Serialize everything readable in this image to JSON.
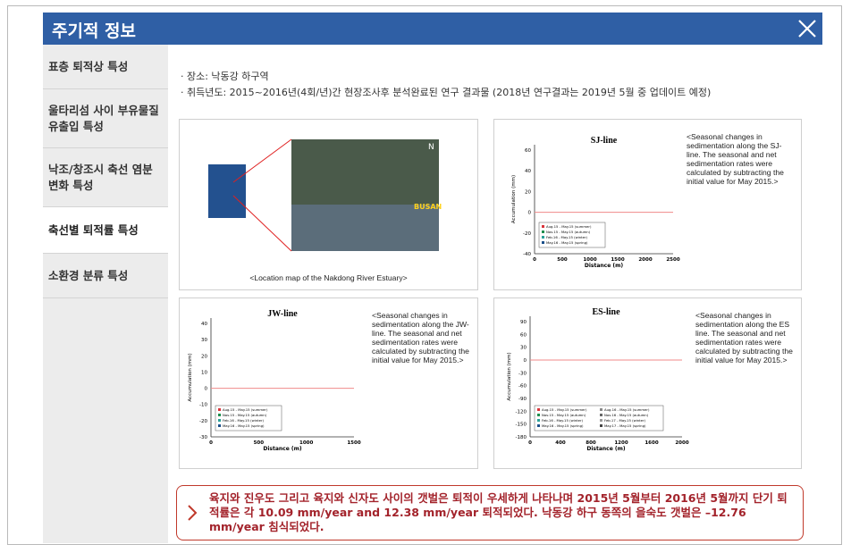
{
  "header": {
    "title": "주기적 정보"
  },
  "sidebar": {
    "items": [
      "표층 퇴적상 특성",
      "울타리섬 사이 부유물질 유출입 특성",
      "낙조/창조시 축선 염분 변화 특성",
      "축선별 퇴적률 특성",
      "소환경 분류 특성"
    ]
  },
  "content": {
    "bullets": [
      "· 장소: 낙동강 하구역",
      "· 취득년도: 2015~2016년(4회/년)간 현장조사후 분석완료된 연구 결과물 (2018년 연구결과는 2019년 5월 중 업데이트 예정)"
    ]
  },
  "panels": [
    {
      "caption": "<Location map of the Nakdong River Estuary>",
      "map_label": "BUSAN",
      "north": "N"
    },
    {
      "title": "SJ-line",
      "caption": "<Seasonal changes in sedimentation along the SJ-line. The seasonal and net sedimentation rates were calculated by subtracting the initial value for May 2015.>",
      "ylabel": "Accumulation (mm)",
      "xlabel": "Distance (m)",
      "yticks": [
        "60",
        "40",
        "20",
        "0",
        "-20",
        "-40"
      ],
      "xticks": [
        "0",
        "500",
        "1000",
        "1500",
        "2000",
        "2500"
      ],
      "legend": [
        "Aug.15 - May.15 (summer)",
        "Nov.15 - May.15 (autumn)",
        "Feb.16 - May.15 (winter)",
        "May.16 - May.15 (spring)"
      ]
    },
    {
      "title": "JW-line",
      "caption": "<Seasonal changes in sedimentation along the JW-line. The seasonal and net sedimentation rates were calculated by subtracting the initial value for May 2015.>",
      "ylabel": "Accumulation (mm)",
      "xlabel": "Distance (m)",
      "yticks": [
        "40",
        "30",
        "20",
        "10",
        "0",
        "-10",
        "-20",
        "-30"
      ],
      "xticks": [
        "0",
        "500",
        "1000",
        "1500"
      ],
      "legend": [
        "Aug.15 - May.15 (summer)",
        "Nov.15 - May.15 (autumn)",
        "Feb.16 - May.15 (winter)",
        "May.16 - May.15 (spring)"
      ]
    },
    {
      "title": "ES-line",
      "caption": "<Seasonal changes in sedimentation along the ES line. The seasonal and net sedimentation rates were calculated by subtracting the initial value for May 2015.>",
      "ylabel": "Accumulation (mm)",
      "xlabel": "Distance (m)",
      "yticks": [
        "90",
        "60",
        "30",
        "0",
        "-30",
        "-60",
        "-90",
        "-120",
        "-150",
        "-180"
      ],
      "xticks": [
        "0",
        "400",
        "800",
        "1200",
        "1600",
        "2000"
      ],
      "legend": [
        "Aug.15 - May.15 (summer)",
        "Nov.15 - May.15 (autumn)",
        "Feb.16 - May.15 (winter)",
        "May.16 - May.15 (spring)",
        "Aug.16 - May.15 (summer)",
        "Nov.16 - May.15 (autumn)",
        "Feb.17 - May.15 (winter)",
        "May.17 - May.15 (spring)"
      ]
    }
  ],
  "note": {
    "text": "육지와 진우도 그리고 육지와 신자도 사이의 갯벌은 퇴적이 우세하게 나타나며 2015년 5월부터 2016년 5월까지 단기 퇴적률은 각 10.09 mm/year and 12.38 mm/year 퇴적되었다. 낙동강 하구 동쪽의 을숙도 갯벌은 –12.76 mm/year 침식되었다."
  }
}
